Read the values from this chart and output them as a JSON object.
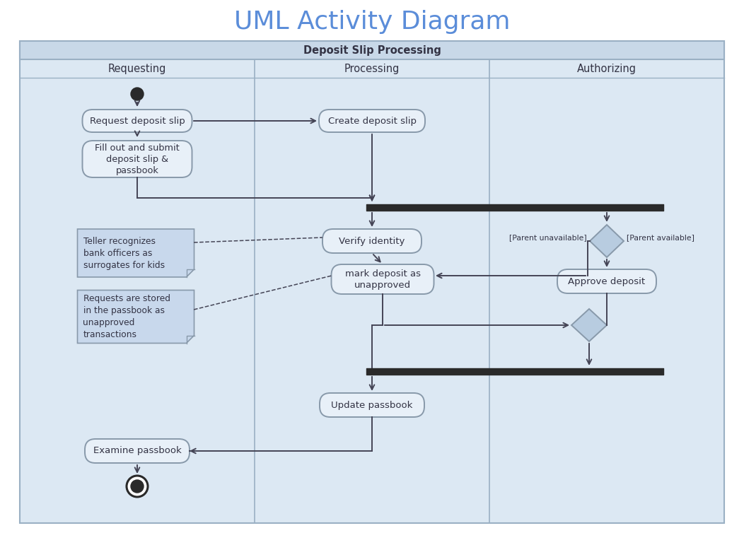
{
  "title": "UML Activity Diagram",
  "title_color": "#5b8dd9",
  "title_fontsize": 26,
  "bg_color": "#ffffff",
  "diagram_bg": "#dce8f3",
  "lane_header_bg": "#dce8f3",
  "swimlane_title_bg": "#c8d8e8",
  "border_color": "#9ab0c4",
  "swimlane_title": "Deposit Slip Processing",
  "lanes": [
    "Requesting",
    "Processing",
    "Authorizing"
  ],
  "node_fill": "#e8f0f8",
  "node_edge": "#8899aa",
  "note_fill": "#c8d8ec",
  "note_edge": "#8899aa",
  "diamond_fill": "#b8cce0",
  "diamond_edge": "#8899aa",
  "bar_color": "#2a2a2a",
  "arrow_color": "#444455",
  "text_color": "#333344"
}
